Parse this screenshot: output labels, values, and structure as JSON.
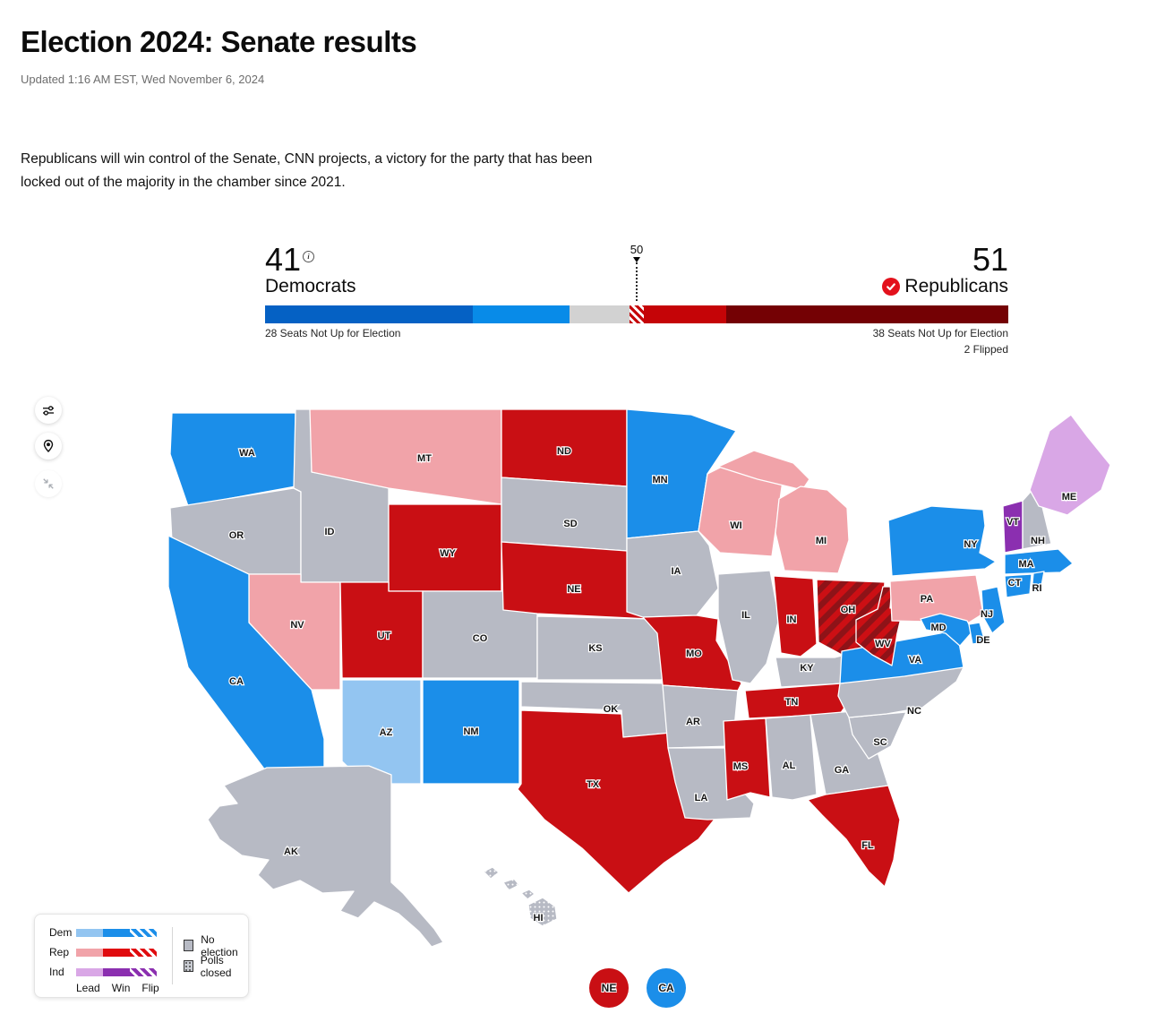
{
  "page": {
    "title": "Election 2024: Senate results",
    "updated": "Updated 1:16 AM EST, Wed November 6, 2024",
    "description": "Republicans will win control of the Senate, CNN projects, a victory for the party that has been locked out of the majority in the chamber since 2021."
  },
  "power_bar": {
    "dem_count": "41",
    "dem_label": "Democrats",
    "rep_count": "51",
    "rep_label": "Republicans",
    "majority_tick": "50",
    "dem_note": "28 Seats Not Up for Election",
    "rep_note": "38 Seats Not Up for Election",
    "rep_flipped_note": "2 Flipped",
    "total_seats": 100,
    "segments": [
      {
        "name": "dem-holdover",
        "seats": 28,
        "fill": "#0561c4"
      },
      {
        "name": "dem-won",
        "seats": 13,
        "fill": "#088be8"
      },
      {
        "name": "undecided",
        "seats": 8,
        "fill": "#d2d2d2"
      },
      {
        "name": "rep-flipped",
        "seats": 2,
        "fill": "hatch-red-white"
      },
      {
        "name": "rep-won",
        "seats": 11,
        "fill": "#c50407"
      },
      {
        "name": "rep-holdover",
        "seats": 38,
        "fill": "#740104"
      }
    ]
  },
  "toolbar": {
    "icons": [
      "sliders-icon",
      "location-pin-icon",
      "collapse-icon"
    ]
  },
  "map": {
    "status_fills": {
      "dem-win": "#1b8ee9",
      "dem-lead": "#93c5f1",
      "rep-win": "#c90f14",
      "rep-lead": "#f1a3a9",
      "rep-flip": "hatch-red",
      "ind-win": "#8b2fb0",
      "ind-lead": "#d9a7e6",
      "no-election": "#b7bac4",
      "polls-closed": "dots-gray"
    },
    "states": {
      "WA": {
        "label": "WA",
        "status": "dem-win"
      },
      "OR": {
        "label": "OR",
        "status": "no-election"
      },
      "CA": {
        "label": "CA",
        "status": "dem-win"
      },
      "ID": {
        "label": "ID",
        "status": "no-election"
      },
      "NV": {
        "label": "NV",
        "status": "rep-lead"
      },
      "MT": {
        "label": "MT",
        "status": "rep-lead"
      },
      "WY": {
        "label": "WY",
        "status": "rep-win"
      },
      "UT": {
        "label": "UT",
        "status": "rep-win"
      },
      "CO": {
        "label": "CO",
        "status": "no-election"
      },
      "AZ": {
        "label": "AZ",
        "status": "dem-lead"
      },
      "NM": {
        "label": "NM",
        "status": "dem-win"
      },
      "ND": {
        "label": "ND",
        "status": "rep-win"
      },
      "SD": {
        "label": "SD",
        "status": "no-election"
      },
      "NE": {
        "label": "NE",
        "status": "rep-win"
      },
      "KS": {
        "label": "KS",
        "status": "no-election"
      },
      "OK": {
        "label": "OK",
        "status": "no-election"
      },
      "TX": {
        "label": "TX",
        "status": "rep-win"
      },
      "MN": {
        "label": "MN",
        "status": "dem-win"
      },
      "IA": {
        "label": "IA",
        "status": "no-election"
      },
      "MO": {
        "label": "MO",
        "status": "rep-win"
      },
      "AR": {
        "label": "AR",
        "status": "no-election"
      },
      "LA": {
        "label": "LA",
        "status": "no-election"
      },
      "WI": {
        "label": "WI",
        "status": "rep-lead"
      },
      "IL": {
        "label": "IL",
        "status": "no-election"
      },
      "MI": {
        "label": "MI",
        "status": "rep-lead"
      },
      "IN": {
        "label": "IN",
        "status": "rep-win"
      },
      "OH": {
        "label": "OH",
        "status": "rep-flip"
      },
      "KY": {
        "label": "KY",
        "status": "no-election"
      },
      "TN": {
        "label": "TN",
        "status": "rep-win"
      },
      "MS": {
        "label": "MS",
        "status": "rep-win"
      },
      "AL": {
        "label": "AL",
        "status": "no-election"
      },
      "GA": {
        "label": "GA",
        "status": "no-election"
      },
      "FL": {
        "label": "FL",
        "status": "rep-win"
      },
      "SC": {
        "label": "SC",
        "status": "no-election"
      },
      "NC": {
        "label": "NC",
        "status": "no-election"
      },
      "VA": {
        "label": "VA",
        "status": "dem-win"
      },
      "WV": {
        "label": "WV",
        "status": "rep-flip"
      },
      "PA": {
        "label": "PA",
        "status": "rep-lead"
      },
      "NY": {
        "label": "NY",
        "status": "dem-win"
      },
      "VT": {
        "label": "VT",
        "status": "ind-win"
      },
      "NH": {
        "label": "NH",
        "status": "no-election"
      },
      "ME": {
        "label": "ME",
        "status": "ind-lead"
      },
      "MA": {
        "label": "MA",
        "status": "dem-win"
      },
      "CT": {
        "label": "CT",
        "status": "dem-win"
      },
      "RI": {
        "label": "RI",
        "status": "dem-win"
      },
      "NJ": {
        "label": "NJ",
        "status": "dem-win"
      },
      "MD": {
        "label": "MD",
        "status": "dem-win"
      },
      "DE": {
        "label": "DE",
        "status": "dem-win"
      },
      "AK": {
        "label": "AK",
        "status": "no-election"
      },
      "HI": {
        "label": "HI",
        "status": "polls-closed"
      }
    }
  },
  "legend": {
    "rows": [
      {
        "label": "Dem",
        "lead": "#93c5f1",
        "win": "#1b8ee9"
      },
      {
        "label": "Rep",
        "lead": "#f1a3a9",
        "win": "#e00b0e"
      },
      {
        "label": "Ind",
        "lead": "#d9a7e6",
        "win": "#8b2fb0"
      }
    ],
    "col_labels": [
      "Lead",
      "Win",
      "Flip"
    ],
    "no_election_label": "No election",
    "polls_closed_label": "Polls closed"
  },
  "badges": [
    {
      "label": "NE",
      "color": "#c90f14"
    },
    {
      "label": "CA",
      "color": "#1b8ee9"
    }
  ]
}
